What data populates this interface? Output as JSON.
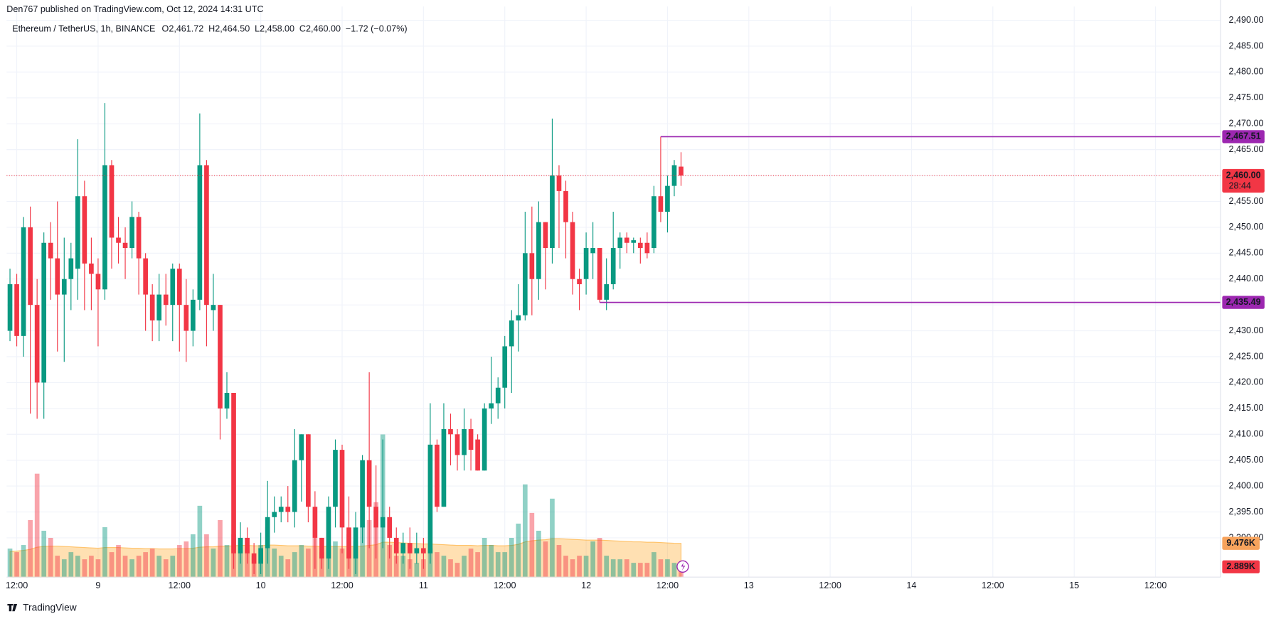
{
  "header": "Den767 published on TradingView.com, Oct 12, 2024 14:31 UTC",
  "footer": "TradingView",
  "legend": {
    "symbol": "Ethereum / TetherUS, 1h, BINANCE",
    "ohlc": [
      {
        "key": "O",
        "value": "2,461.72"
      },
      {
        "key": "H",
        "value": "2,464.50"
      },
      {
        "key": "L",
        "value": "2,458.00"
      },
      {
        "key": "C",
        "value": "2,460.00"
      }
    ],
    "change": "−1.72 (−0.07%)"
  },
  "chart_data": {
    "type": "candlestick",
    "up_color": "#089981",
    "down_color": "#f23645",
    "grid": true,
    "open": [
      2430,
      2439,
      2429,
      2450,
      2435,
      2420,
      2447,
      2444,
      2437,
      2440,
      2442,
      2456,
      2443,
      2441,
      2438,
      2462,
      2448,
      2447,
      2446,
      2452,
      2444,
      2437,
      2432,
      2437,
      2435,
      2442,
      2435,
      2430,
      2436,
      2462,
      2434,
      2435,
      2415,
      2418,
      2387,
      2390,
      2387,
      2385,
      2388,
      2394,
      2395,
      2396,
      2395,
      2405,
      2410,
      2396,
      2390,
      2386,
      2396,
      2407,
      2392,
      2386,
      2392,
      2405,
      2396,
      2392,
      2394,
      2390,
      2387,
      2389,
      2387,
      2388,
      2387,
      2408,
      2396,
      2411,
      2410,
      2406,
      2411,
      2409,
      2403,
      2415,
      2416,
      2419,
      2427,
      2432,
      2433,
      2445,
      2440,
      2451,
      2446,
      2460,
      2457,
      2451,
      2440,
      2440,
      2445,
      2446,
      2436,
      2439,
      2446,
      2448,
      2447,
      2447,
      2447,
      2446,
      2456,
      2453,
      2458,
      2461.72
    ],
    "high": [
      2442,
      2441,
      2452,
      2454,
      2440,
      2449,
      2451,
      2455,
      2448,
      2447,
      2467,
      2459,
      2448,
      2444,
      2474,
      2463,
      2452,
      2450,
      2455,
      2453,
      2445,
      2439,
      2441,
      2441,
      2443,
      2443,
      2440,
      2438,
      2472,
      2463,
      2441,
      2435,
      2422,
      2418,
      2393,
      2392,
      2389,
      2391,
      2401,
      2398,
      2398,
      2400,
      2411,
      2410,
      2410,
      2399,
      2390,
      2398,
      2409,
      2408,
      2398,
      2395,
      2406,
      2422,
      2404,
      2409,
      2396,
      2392,
      2391,
      2392,
      2391,
      2390,
      2416,
      2409,
      2416,
      2414,
      2411,
      2415,
      2413,
      2410,
      2416,
      2425,
      2421,
      2429,
      2434,
      2439,
      2453,
      2454,
      2455,
      2451,
      2471,
      2462,
      2459,
      2453,
      2442,
      2449,
      2451,
      2446,
      2444,
      2453,
      2449,
      2449,
      2448,
      2448,
      2449,
      2458,
      2467.51,
      2460,
      2463,
      2464.5
    ],
    "low": [
      2428,
      2427,
      2425,
      2414,
      2413,
      2413,
      2436,
      2426,
      2424,
      2434,
      2436,
      2434,
      2434,
      2427,
      2436,
      2442,
      2443,
      2440,
      2444,
      2437,
      2430,
      2428,
      2428,
      2431,
      2428,
      2426,
      2424,
      2427,
      2434,
      2427,
      2430,
      2409,
      2413,
      2384,
      2385,
      2385,
      2383,
      2383,
      2385,
      2391,
      2393,
      2393,
      2392,
      2397,
      2393,
      2384,
      2384,
      2384,
      2392,
      2387,
      2384,
      2383,
      2389,
      2388,
      2386,
      2388,
      2386,
      2385,
      2385,
      2384,
      2385,
      2384,
      2385,
      2395,
      2396,
      2404,
      2403,
      2403,
      2403,
      2403,
      2403,
      2412,
      2413,
      2415,
      2418,
      2426,
      2432,
      2433,
      2436,
      2438,
      2443,
      2446,
      2444,
      2437,
      2434,
      2437,
      2440,
      2435.49,
      2434,
      2438,
      2442,
      2445,
      2445,
      2443,
      2444,
      2445,
      2451,
      2449,
      2456,
      2458
    ],
    "close": [
      2439,
      2429,
      2450,
      2435,
      2420,
      2447,
      2444,
      2437,
      2440,
      2444,
      2456,
      2443,
      2441,
      2438,
      2462,
      2448,
      2447,
      2446,
      2452,
      2444,
      2437,
      2432,
      2437,
      2435,
      2442,
      2435,
      2430,
      2436,
      2462,
      2435,
      2435,
      2415,
      2418,
      2387,
      2390,
      2387,
      2385,
      2388,
      2394,
      2395,
      2396,
      2395,
      2405,
      2410,
      2396,
      2390,
      2386,
      2396,
      2407,
      2392,
      2386,
      2392,
      2405,
      2396,
      2392,
      2394,
      2390,
      2387,
      2389,
      2387,
      2388,
      2387,
      2408,
      2396,
      2411,
      2410,
      2406,
      2411,
      2407,
      2403,
      2415,
      2416,
      2419,
      2427,
      2432,
      2433,
      2445,
      2440,
      2451,
      2446,
      2460,
      2457,
      2451,
      2440,
      2439,
      2446,
      2446,
      2436,
      2439,
      2446,
      2448,
      2447,
      2447.5,
      2446,
      2445,
      2456,
      2453,
      2458,
      2462,
      2460
    ],
    "volume": [
      8,
      7,
      9,
      16,
      29,
      13,
      11,
      6,
      5,
      7,
      6,
      5,
      6,
      5,
      14,
      7,
      9,
      6,
      5,
      6,
      7,
      8,
      6,
      5,
      6,
      9,
      10,
      12,
      20,
      12,
      8,
      16,
      9,
      12,
      11,
      8,
      6,
      9,
      14,
      8,
      6,
      5,
      7,
      9,
      8,
      11,
      7,
      9,
      10,
      8,
      12,
      10,
      14,
      16,
      21,
      40,
      9,
      6,
      6,
      5,
      4,
      5,
      8,
      7,
      6,
      5,
      4,
      6,
      8,
      7,
      11,
      9,
      7,
      7,
      11,
      15,
      26,
      18,
      13,
      10,
      22,
      9,
      6,
      5,
      6,
      6,
      10,
      11,
      6,
      5,
      5,
      5,
      4,
      4,
      4,
      7,
      5,
      5,
      4,
      2.889
    ],
    "volume_ma": [
      7.2,
      7.3,
      7.5,
      7.8,
      8.4,
      8.6,
      8.7,
      8.7,
      8.6,
      8.5,
      8.4,
      8.3,
      8.2,
      8.1,
      8.3,
      8.3,
      8.3,
      8.2,
      8.1,
      8.1,
      8.0,
      8.0,
      7.9,
      7.9,
      7.9,
      8.0,
      8.0,
      8.1,
      8.4,
      8.5,
      8.5,
      8.7,
      8.7,
      8.8,
      8.9,
      8.9,
      8.8,
      8.8,
      9.0,
      9.0,
      8.9,
      8.8,
      8.8,
      8.8,
      8.7,
      8.7,
      8.6,
      8.6,
      8.6,
      8.6,
      8.6,
      8.6,
      8.7,
      8.9,
      9.1,
      9.8,
      9.8,
      9.7,
      9.6,
      9.5,
      9.4,
      9.3,
      9.3,
      9.2,
      9.1,
      9.0,
      8.9,
      8.9,
      8.9,
      8.8,
      8.9,
      8.9,
      8.8,
      8.8,
      8.9,
      9.2,
      9.9,
      10.2,
      10.4,
      10.5,
      10.8,
      10.8,
      10.7,
      10.6,
      10.5,
      10.4,
      10.4,
      10.4,
      10.3,
      10.2,
      10.1,
      10.0,
      9.9,
      9.9,
      9.8,
      9.8,
      9.7,
      9.6,
      9.5,
      9.476
    ],
    "volume_lim": [
      0,
      160
    ],
    "xlim": [
      -0.5,
      178.6
    ],
    "xticks": [
      {
        "value": 1,
        "label": "12:00"
      },
      {
        "value": 13,
        "label": "9"
      },
      {
        "value": 25,
        "label": "12:00"
      },
      {
        "value": 37,
        "label": "10"
      },
      {
        "value": 49,
        "label": "12:00"
      },
      {
        "value": 61,
        "label": "11"
      },
      {
        "value": 73,
        "label": "12:00"
      },
      {
        "value": 85,
        "label": "12"
      },
      {
        "value": 97,
        "label": "12:00"
      },
      {
        "value": 109,
        "label": "13"
      },
      {
        "value": 121,
        "label": "12:00"
      },
      {
        "value": 133,
        "label": "14"
      },
      {
        "value": 145,
        "label": "12:00"
      },
      {
        "value": 157,
        "label": "15"
      },
      {
        "value": 169,
        "label": "12:00"
      }
    ],
    "ylim": [
      2382.41,
      2492.66
    ],
    "yticks": [
      {
        "value": 2390,
        "label": "2,390.00"
      },
      {
        "value": 2395,
        "label": "2,395.00"
      },
      {
        "value": 2400,
        "label": "2,400.00"
      },
      {
        "value": 2405,
        "label": "2,405.00"
      },
      {
        "value": 2410,
        "label": "2,410.00"
      },
      {
        "value": 2415,
        "label": "2,415.00"
      },
      {
        "value": 2420,
        "label": "2,420.00"
      },
      {
        "value": 2425,
        "label": "2,425.00"
      },
      {
        "value": 2430,
        "label": "2,430.00"
      },
      {
        "value": 2435,
        "label": "2,435.00"
      },
      {
        "value": 2440,
        "label": "2,440.00"
      },
      {
        "value": 2445,
        "label": "2,445.00"
      },
      {
        "value": 2450,
        "label": "2,450.00"
      },
      {
        "value": 2455,
        "label": "2,455.00"
      },
      {
        "value": 2460,
        "label": "2,460.00"
      },
      {
        "value": 2465,
        "label": "2,465.00"
      },
      {
        "value": 2470,
        "label": "2,470.00"
      },
      {
        "value": 2475,
        "label": "2,475.00"
      },
      {
        "value": 2480,
        "label": "2,480.00"
      },
      {
        "value": 2485,
        "label": "2,485.00"
      },
      {
        "value": 2490,
        "label": "2,490.00"
      }
    ],
    "levels": [
      {
        "value": 2467.51,
        "label": "2,467.51",
        "color": "#9c27b0"
      },
      {
        "value": 2435.49,
        "label": "2,435.49",
        "color": "#9c27b0"
      }
    ],
    "last_price": {
      "value": 2460,
      "label": "2,460.00",
      "countdown": "28:44"
    },
    "volume_labels": [
      {
        "value": 9.476,
        "label": "9.476K",
        "color": "#f7a35c"
      },
      {
        "value": 2.889,
        "label": "2.889K",
        "color": "#f23645"
      }
    ]
  }
}
